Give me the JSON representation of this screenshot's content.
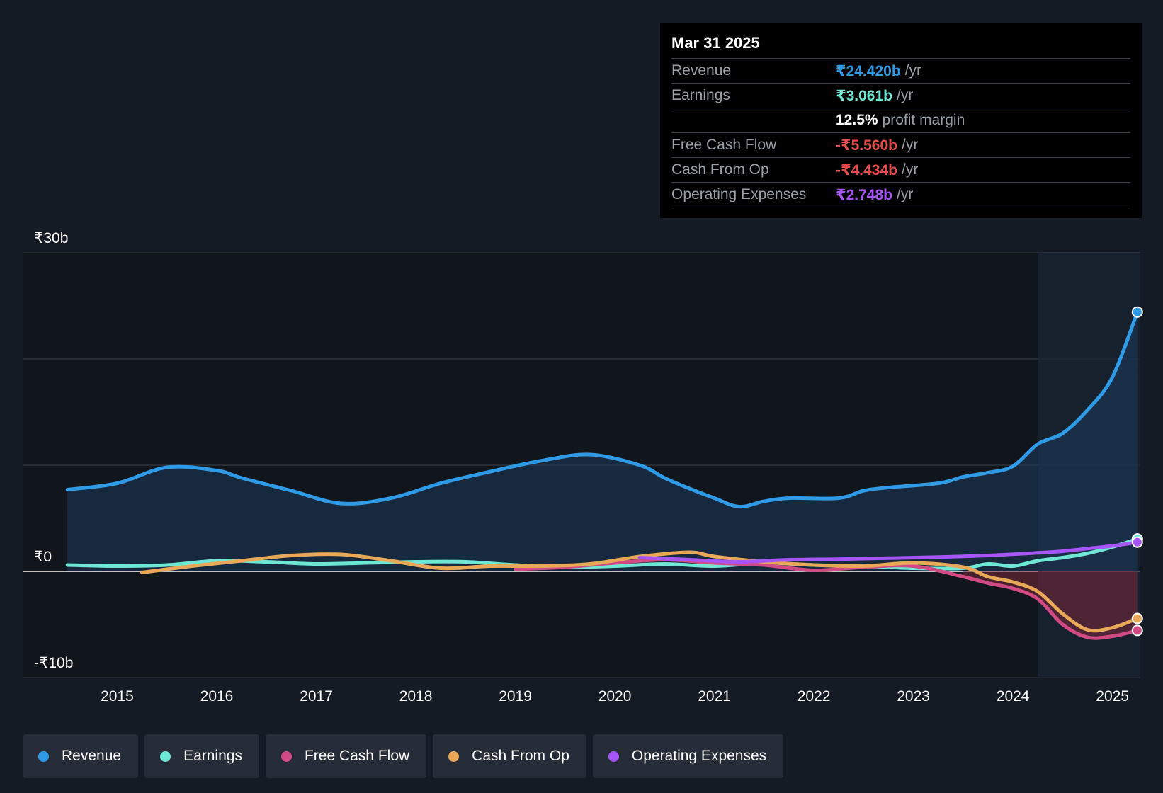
{
  "tooltip": {
    "date": "Mar 31 2025",
    "rows": [
      {
        "name": "Revenue",
        "value": "₹24.420b",
        "unit": "/yr",
        "color": "#2f9be6"
      },
      {
        "name": "Earnings",
        "value": "₹3.061b",
        "unit": "/yr",
        "color": "#6ee8d4"
      },
      {
        "name": "",
        "value": "12.5%",
        "unit": "profit margin",
        "color": "#ffffff"
      },
      {
        "name": "Free Cash Flow",
        "value": "-₹5.560b",
        "unit": "/yr",
        "color": "#e84b4b"
      },
      {
        "name": "Cash From Op",
        "value": "-₹4.434b",
        "unit": "/yr",
        "color": "#e84b4b"
      },
      {
        "name": "Operating Expenses",
        "value": "₹2.748b",
        "unit": "/yr",
        "color": "#a855f7"
      }
    ]
  },
  "legend": [
    {
      "label": "Revenue",
      "color": "#2f9be6"
    },
    {
      "label": "Earnings",
      "color": "#6ee8d4"
    },
    {
      "label": "Free Cash Flow",
      "color": "#d14a84"
    },
    {
      "label": "Cash From Op",
      "color": "#e8a857"
    },
    {
      "label": "Operating Expenses",
      "color": "#a855f7"
    }
  ],
  "chart_data": {
    "type": "line",
    "ylim": [
      -10,
      30
    ],
    "y_tick_labels": [
      {
        "value": 30,
        "label": "₹30b"
      },
      {
        "value": 0,
        "label": "₹0"
      },
      {
        "value": -10,
        "label": "-₹10b"
      }
    ],
    "gridlines": [
      30,
      20,
      10,
      0,
      -10
    ],
    "xlim": [
      2014.05,
      2025.28
    ],
    "x_ticks": [
      2015,
      2016,
      2017,
      2018,
      2019,
      2020,
      2021,
      2022,
      2023,
      2024,
      2025
    ],
    "forecast_band_start": 2024.25,
    "series": [
      {
        "name": "Revenue",
        "color": "#2f9be6",
        "fill": true,
        "points": [
          [
            2014.5,
            7.7
          ],
          [
            2015.0,
            8.3
          ],
          [
            2015.5,
            9.8
          ],
          [
            2016.0,
            9.5
          ],
          [
            2016.25,
            8.8
          ],
          [
            2016.75,
            7.6
          ],
          [
            2017.25,
            6.4
          ],
          [
            2017.75,
            6.9
          ],
          [
            2018.25,
            8.3
          ],
          [
            2018.75,
            9.4
          ],
          [
            2019.25,
            10.4
          ],
          [
            2019.75,
            11.0
          ],
          [
            2020.25,
            10.0
          ],
          [
            2020.5,
            8.8
          ],
          [
            2020.75,
            7.8
          ],
          [
            2021.0,
            6.9
          ],
          [
            2021.25,
            6.1
          ],
          [
            2021.5,
            6.6
          ],
          [
            2021.75,
            6.9
          ],
          [
            2022.25,
            6.9
          ],
          [
            2022.5,
            7.6
          ],
          [
            2022.75,
            7.9
          ],
          [
            2023.25,
            8.3
          ],
          [
            2023.5,
            8.9
          ],
          [
            2023.75,
            9.3
          ],
          [
            2024.0,
            9.9
          ],
          [
            2024.25,
            12.0
          ],
          [
            2024.5,
            13.0
          ],
          [
            2024.75,
            15.2
          ],
          [
            2025.0,
            18.3
          ],
          [
            2025.25,
            24.42
          ]
        ]
      },
      {
        "name": "Earnings",
        "color": "#6ee8d4",
        "points": [
          [
            2014.5,
            0.6
          ],
          [
            2015.0,
            0.5
          ],
          [
            2015.5,
            0.6
          ],
          [
            2016.0,
            1.0
          ],
          [
            2016.5,
            0.9
          ],
          [
            2017.0,
            0.7
          ],
          [
            2017.5,
            0.8
          ],
          [
            2018.0,
            0.9
          ],
          [
            2018.5,
            0.9
          ],
          [
            2019.0,
            0.6
          ],
          [
            2019.5,
            0.4
          ],
          [
            2020.0,
            0.5
          ],
          [
            2020.5,
            0.7
          ],
          [
            2021.0,
            0.5
          ],
          [
            2021.5,
            0.8
          ],
          [
            2022.0,
            0.6
          ],
          [
            2022.5,
            0.5
          ],
          [
            2023.0,
            0.3
          ],
          [
            2023.5,
            0.3
          ],
          [
            2023.75,
            0.7
          ],
          [
            2024.0,
            0.5
          ],
          [
            2024.25,
            1.0
          ],
          [
            2024.5,
            1.3
          ],
          [
            2024.75,
            1.7
          ],
          [
            2025.0,
            2.3
          ],
          [
            2025.25,
            3.061
          ]
        ]
      },
      {
        "name": "Free Cash Flow",
        "color": "#d14a84",
        "points": [
          [
            2019.0,
            0.2
          ],
          [
            2019.5,
            0.4
          ],
          [
            2020.0,
            0.8
          ],
          [
            2020.5,
            1.1
          ],
          [
            2021.0,
            0.8
          ],
          [
            2021.5,
            0.6
          ],
          [
            2022.0,
            0.1
          ],
          [
            2022.5,
            0.4
          ],
          [
            2023.0,
            0.5
          ],
          [
            2023.5,
            -0.5
          ],
          [
            2023.75,
            -1.1
          ],
          [
            2024.0,
            -1.6
          ],
          [
            2024.25,
            -2.6
          ],
          [
            2024.5,
            -5.0
          ],
          [
            2024.75,
            -6.2
          ],
          [
            2025.0,
            -6.1
          ],
          [
            2025.25,
            -5.56
          ]
        ]
      },
      {
        "name": "Cash From Op",
        "color": "#e8a857",
        "points": [
          [
            2015.25,
            -0.1
          ],
          [
            2015.75,
            0.5
          ],
          [
            2016.25,
            1.0
          ],
          [
            2016.75,
            1.5
          ],
          [
            2017.25,
            1.6
          ],
          [
            2017.75,
            1.0
          ],
          [
            2018.25,
            0.3
          ],
          [
            2018.75,
            0.5
          ],
          [
            2019.25,
            0.5
          ],
          [
            2019.75,
            0.7
          ],
          [
            2020.25,
            1.4
          ],
          [
            2020.75,
            1.8
          ],
          [
            2021.0,
            1.4
          ],
          [
            2021.5,
            0.9
          ],
          [
            2022.0,
            0.6
          ],
          [
            2022.5,
            0.5
          ],
          [
            2023.0,
            0.8
          ],
          [
            2023.5,
            0.4
          ],
          [
            2023.75,
            -0.5
          ],
          [
            2024.0,
            -1.0
          ],
          [
            2024.25,
            -1.9
          ],
          [
            2024.5,
            -4.0
          ],
          [
            2024.75,
            -5.5
          ],
          [
            2025.0,
            -5.3
          ],
          [
            2025.25,
            -4.434
          ]
        ]
      },
      {
        "name": "Operating Expenses",
        "color": "#a855f7",
        "points": [
          [
            2020.25,
            1.3
          ],
          [
            2020.75,
            1.1
          ],
          [
            2021.25,
            0.9
          ],
          [
            2021.75,
            1.1
          ],
          [
            2022.25,
            1.15
          ],
          [
            2022.75,
            1.25
          ],
          [
            2023.25,
            1.35
          ],
          [
            2023.75,
            1.5
          ],
          [
            2024.25,
            1.75
          ],
          [
            2024.5,
            1.9
          ],
          [
            2024.75,
            2.15
          ],
          [
            2025.0,
            2.4
          ],
          [
            2025.25,
            2.748
          ]
        ]
      }
    ]
  }
}
